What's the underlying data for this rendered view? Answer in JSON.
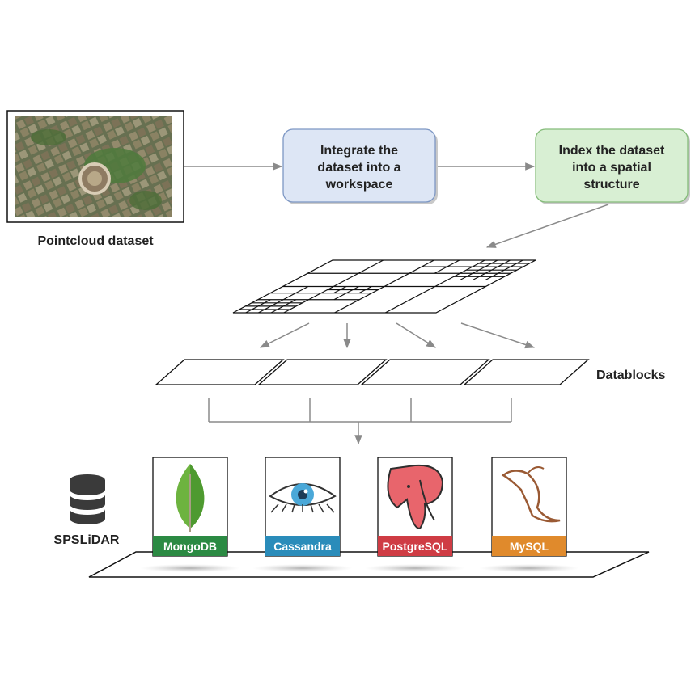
{
  "pointcloud": {
    "label": "Pointcloud dataset"
  },
  "steps": [
    {
      "lines": [
        "Integrate the",
        "dataset into a",
        "workspace"
      ],
      "fill": "#dde6f5",
      "stroke": "#7d97c4"
    },
    {
      "lines": [
        "Index the dataset",
        "into a spatial",
        "structure"
      ],
      "fill": "#d8efd3",
      "stroke": "#85bc7a"
    }
  ],
  "datablocks_label": "Datablocks",
  "system_label": "SPSLiDAR",
  "databases": [
    {
      "name": "MongoDB",
      "color": "#2b8a43",
      "icon": "mongodb-leaf-icon"
    },
    {
      "name": "Cassandra",
      "color": "#2a8cba",
      "icon": "cassandra-eye-icon"
    },
    {
      "name": "PostgreSQL",
      "color": "#cf3c44",
      "icon": "postgresql-elephant-icon"
    },
    {
      "name": "MySQL",
      "color": "#e08a2c",
      "icon": "mysql-dolphin-icon"
    }
  ],
  "colors": {
    "arrow": "#8a8a8a",
    "line": "#111111"
  }
}
